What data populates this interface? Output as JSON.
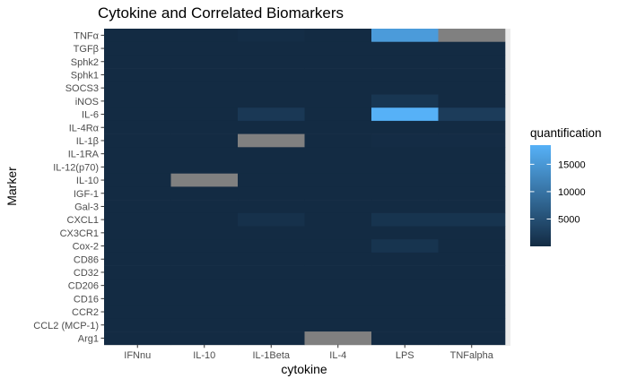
{
  "chart_data": {
    "type": "heatmap",
    "title": "Cytokine and Correlated Biomarkers",
    "xlabel": "cytokine",
    "ylabel": "Marker",
    "x_categories": [
      "IFNnu",
      "IL-10",
      "IL-1Beta",
      "IL-4",
      "LPS",
      "TNFalpha"
    ],
    "y_categories": [
      "TNFα",
      "TGFβ",
      "Sphk2",
      "Sphk1",
      "SOCS3",
      "iNOS",
      "IL-6",
      "IL-4Rα",
      "IL-1β",
      "IL-1RA",
      "IL-12(p70)",
      "IL-10",
      "IGF-1",
      "Gal-3",
      "CXCL1",
      "CX3CR1",
      "Cox-2",
      "CD86",
      "CD32",
      "CD206",
      "CD16",
      "CCR2",
      "CCL2 (MCP-1)",
      "Arg1"
    ],
    "values": [
      [
        0,
        0,
        300,
        0,
        15500,
        null
      ],
      [
        0,
        0,
        0,
        0,
        0,
        0
      ],
      [
        0,
        0,
        0,
        0,
        0,
        0
      ],
      [
        0,
        0,
        0,
        0,
        0,
        0
      ],
      [
        0,
        0,
        0,
        0,
        0,
        0
      ],
      [
        0,
        0,
        0,
        0,
        1500,
        0
      ],
      [
        0,
        0,
        1800,
        0,
        18500,
        2400
      ],
      [
        0,
        0,
        0,
        0,
        0,
        0
      ],
      [
        0,
        0,
        null,
        0,
        200,
        200
      ],
      [
        0,
        0,
        0,
        0,
        0,
        0
      ],
      [
        0,
        0,
        0,
        0,
        0,
        0
      ],
      [
        0,
        null,
        0,
        0,
        0,
        0
      ],
      [
        0,
        0,
        0,
        0,
        0,
        0
      ],
      [
        0,
        0,
        0,
        0,
        0,
        0
      ],
      [
        0,
        0,
        800,
        0,
        1200,
        1200
      ],
      [
        0,
        0,
        0,
        0,
        0,
        0
      ],
      [
        0,
        0,
        0,
        0,
        1200,
        0
      ],
      [
        0,
        0,
        0,
        0,
        0,
        0
      ],
      [
        0,
        0,
        0,
        0,
        0,
        0
      ],
      [
        0,
        0,
        0,
        0,
        0,
        0
      ],
      [
        0,
        0,
        0,
        0,
        0,
        0
      ],
      [
        0,
        0,
        0,
        0,
        0,
        0
      ],
      [
        0,
        0,
        0,
        0,
        0,
        0
      ],
      [
        0,
        0,
        0,
        null,
        0,
        0
      ]
    ],
    "na_color": "#808080",
    "color_scale": {
      "low": "#132B43",
      "high": "#56B1F7",
      "min": 0,
      "max": 18500
    },
    "legend": {
      "title": "quantification",
      "breaks": [
        5000,
        10000,
        15000
      ],
      "break_labels": [
        "5000",
        "10000",
        "15000"
      ],
      "position": "right"
    },
    "panel_background": "#EBEBEB",
    "grid": true
  }
}
